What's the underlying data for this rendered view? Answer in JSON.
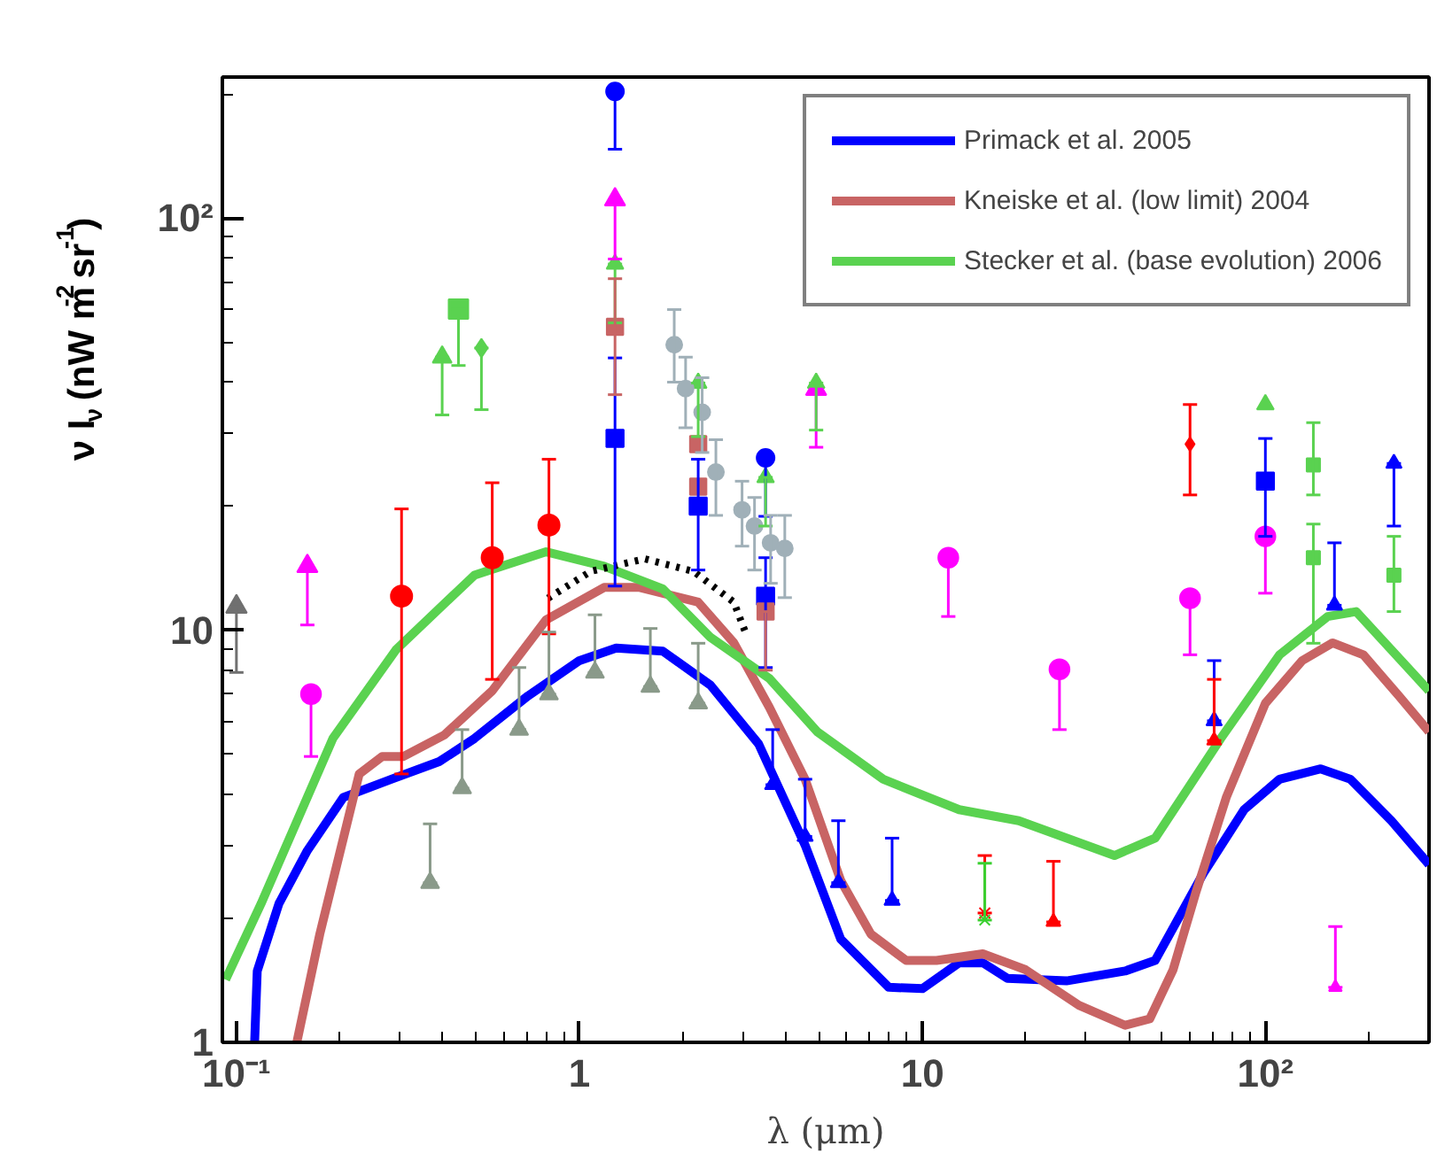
{
  "chart_data": {
    "type": "line",
    "xlabel": "λ (μm)",
    "ylabel": "ν I$_{ν}$ (nW m$^{-2}$ sr$^{-1}$)",
    "log": "xy",
    "grid": false,
    "legend": "top right",
    "xlim": [
      0.091,
      300
    ],
    "ylim": [
      1,
      220
    ],
    "xticks": [
      {
        "value": 0.1,
        "label": "10⁻¹"
      },
      1,
      10,
      {
        "value": 100,
        "label": "10²"
      }
    ],
    "yticks": [
      1,
      10,
      {
        "value": 100,
        "label": "10²"
      }
    ],
    "series": [
      {
        "name": "Primack et al. 2005",
        "color": "#0000ff",
        "line_style": "solid",
        "x": [
          0.113,
          0.115,
          0.133,
          0.161,
          0.205,
          0.283,
          0.39,
          0.494,
          0.708,
          1.0,
          1.28,
          1.75,
          2.41,
          3.33,
          4.55,
          5.78,
          7.98,
          10,
          12.8,
          15.0,
          17.7,
          26.3,
          39,
          47.7,
          65.9,
          86.7,
          110,
          145,
          177,
          233,
          300
        ],
        "values": [
          1.0,
          1.49,
          2.17,
          2.92,
          3.93,
          4.35,
          4.8,
          5.46,
          6.93,
          8.44,
          9.05,
          8.9,
          7.36,
          5.3,
          3.01,
          1.78,
          1.36,
          1.35,
          1.56,
          1.56,
          1.43,
          1.41,
          1.49,
          1.58,
          2.57,
          3.67,
          4.35,
          4.61,
          4.35,
          3.45,
          2.7
        ]
      },
      {
        "name": "Kneiske et al. (low limit) 2004",
        "color": "#c86464",
        "line_style": "solid",
        "x": [
          0.15,
          0.175,
          0.228,
          0.266,
          0.307,
          0.404,
          0.557,
          0.8,
          1.18,
          1.5,
          2.22,
          2.82,
          3.58,
          4.55,
          5.78,
          7.08,
          8.97,
          11.0,
          15.0,
          20.0,
          28.6,
          39,
          46,
          53.8,
          62.8,
          76.9,
          100,
          128,
          157,
          193,
          245,
          300
        ],
        "values": [
          1.0,
          1.83,
          4.48,
          4.94,
          4.94,
          5.57,
          7.13,
          10.6,
          12.7,
          12.7,
          11.7,
          9.32,
          6.5,
          4.35,
          2.47,
          1.83,
          1.58,
          1.58,
          1.64,
          1.5,
          1.23,
          1.1,
          1.14,
          1.5,
          2.32,
          3.93,
          6.65,
          8.44,
          9.32,
          8.72,
          6.93,
          5.67
        ]
      },
      {
        "name": "Stecker et al. (base evolution) 2006",
        "color": "#5ad250",
        "line_style": "solid",
        "x": [
          0.093,
          0.118,
          0.191,
          0.292,
          0.494,
          0.8,
          1.18,
          1.75,
          2.41,
          3.58,
          4.94,
          7.69,
          12.8,
          19.1,
          36.3,
          47.7,
          74.1,
          110,
          152,
          184,
          300
        ],
        "values": [
          1.42,
          2.17,
          5.46,
          8.97,
          13.6,
          15.5,
          14.3,
          12.6,
          9.61,
          7.64,
          5.67,
          4.35,
          3.67,
          3.45,
          2.84,
          3.13,
          5.46,
          8.72,
          10.8,
          11.1,
          7.13
        ]
      },
      {
        "color": "#000000",
        "line_style": "dotted",
        "x": [
          0.81,
          1.08,
          1.55,
          2.15,
          2.82,
          3.06
        ],
        "values": [
          11.96,
          13.9,
          14.9,
          13.9,
          11.7,
          9.8
        ]
      },
      {
        "type": "scatter",
        "color": "#ff0000",
        "marker": "circle",
        "x": [
          0.303,
          0.557,
          0.815
        ],
        "values": [
          12.1,
          15.0,
          18.0
        ],
        "errors": [
          [
            4.48,
            19.7
          ],
          [
            7.6,
            22.8
          ],
          [
            9.8,
            26.0
          ]
        ]
      },
      {
        "type": "scatter",
        "color": "#707070",
        "marker": "triangle",
        "x": [
          0.1
        ],
        "values": [
          11.4
        ],
        "errors": [
          [
            7.9,
            11.4
          ]
        ]
      },
      {
        "type": "scatter",
        "color": "#ff00ff",
        "marker": "triangle",
        "x": [
          0.161,
          1.27,
          4.9
        ],
        "values": [
          14.3,
          111,
          38.5
        ],
        "errors": [
          [
            10.3,
            14.3
          ],
          [
            79.6,
            111
          ],
          [
            27.8,
            38.5
          ]
        ]
      },
      {
        "type": "scatter",
        "color": "#ff00ff",
        "marker": "circle",
        "x": [
          0.165,
          11.9,
          25.1,
          60.3,
          100
        ],
        "values": [
          7.0,
          15.0,
          8.04,
          11.96,
          16.9
        ],
        "errors": [
          [
            4.94,
            7.0
          ],
          [
            10.8,
            15.0
          ],
          [
            5.74,
            8.04
          ],
          [
            8.72,
            11.96
          ],
          [
            12.3,
            16.9
          ]
        ]
      },
      {
        "type": "scatter",
        "color": "#5ad250",
        "marker": "square",
        "x": [
          0.444
        ],
        "values": [
          60.2
        ],
        "errors": [
          [
            43.9,
            60.2
          ]
        ]
      },
      {
        "type": "scatter",
        "color": "#5ad250",
        "marker": "triangle",
        "x": [
          0.398
        ],
        "values": [
          46.0
        ],
        "errors": [
          [
            33.3,
            46.0
          ]
        ]
      },
      {
        "type": "scatter",
        "color": "#5ad250",
        "marker": "diamond",
        "x": [
          0.518
        ],
        "values": [
          48.4
        ],
        "errors": [
          [
            34.3,
            48.4
          ]
        ]
      },
      {
        "type": "scatter",
        "color": "#8a9a8a",
        "marker": "triangle",
        "x": [
          0.367,
          0.455,
          0.667,
          0.815,
          1.11,
          1.61,
          2.22
        ],
        "values": [
          2.44,
          4.14,
          5.74,
          7.0,
          7.9,
          7.3,
          6.65
        ],
        "errors": [
          [
            2.44,
            3.39
          ],
          [
            4.14,
            5.74
          ],
          [
            5.74,
            8.12
          ],
          [
            7.0,
            9.9
          ],
          [
            7.9,
            10.9
          ],
          [
            7.3,
            10.1
          ],
          [
            6.65,
            9.3
          ]
        ]
      },
      {
        "type": "scatter",
        "color": "#0000ff",
        "marker": "circle",
        "x": [
          1.27,
          3.49
        ],
        "values": [
          203,
          26.2
        ],
        "errors": [
          [
            147,
            203
          ],
          [
            18.9,
            26.2
          ]
        ]
      },
      {
        "type": "scatter",
        "color": "#0000ff",
        "marker": "square",
        "x": [
          1.27,
          2.22,
          3.49,
          100
        ],
        "values": [
          29.2,
          20.0,
          12.1,
          23.0
        ],
        "errors": [
          [
            12.8,
            45.8
          ],
          [
            14.0,
            26.0
          ],
          [
            8.12,
            15.0
          ],
          [
            16.9,
            29.2
          ]
        ]
      },
      {
        "type": "scatter",
        "color": "#5ad250",
        "marker": "triangle",
        "x": [
          1.27,
          2.22,
          3.49,
          4.9,
          100
        ],
        "values": [
          77.4,
          39.8,
          23.5,
          39.8,
          35.3
        ],
        "errors": [
          [
            55.7,
            77.4
          ],
          [
            29.5,
            39.8
          ],
          [
            17.9,
            23.5
          ],
          [
            30.6,
            39.8
          ],
          null
        ]
      },
      {
        "type": "scatter",
        "color": "#c86464",
        "marker": "square",
        "x": [
          1.27,
          2.22,
          2.22,
          3.49
        ],
        "values": [
          54.5,
          28.3,
          22.3,
          11.1
        ],
        "errors": [
          [
            37.3,
            71.3
          ],
          null,
          null,
          [
            8.0,
            11.1
          ]
        ]
      },
      {
        "type": "scatter",
        "color": "#a0b0b8",
        "marker": "circle",
        "x": [
          1.89,
          2.04,
          2.28,
          2.5,
          2.98,
          3.24,
          3.61,
          3.97
        ],
        "values": [
          49.3,
          38.6,
          33.8,
          24.2,
          19.6,
          17.9,
          16.3,
          15.8
        ],
        "errors": [
          [
            40,
            60
          ],
          [
            31,
            46
          ],
          [
            27,
            41
          ],
          [
            19,
            29
          ],
          [
            16,
            23
          ],
          [
            14,
            21
          ],
          [
            13,
            19
          ],
          [
            12,
            19
          ]
        ]
      },
      {
        "type": "scatter",
        "color": "#0000ff",
        "marker": "triangle",
        "x": [
          3.66,
          4.55,
          5.69,
          8.16,
          70.9,
          159,
          237
        ],
        "values": [
          4.22,
          3.16,
          2.44,
          2.21,
          6.03,
          11.5,
          25.4
        ],
        "errors": [
          [
            4.22,
            5.74
          ],
          [
            3.16,
            4.35
          ],
          [
            2.44,
            3.45
          ],
          [
            2.21,
            3.13
          ],
          [
            6.03,
            8.44
          ],
          [
            11.5,
            16.3
          ],
          [
            17.9,
            25.4
          ]
        ]
      },
      {
        "type": "scatter",
        "color": "#ff0000",
        "marker": "cross",
        "x": [
          15.2
        ],
        "values": [
          2.06
        ],
        "errors": [
          [
            2.06,
            2.84
          ]
        ]
      },
      {
        "type": "scatter",
        "color": "#3ad030",
        "marker": "cross",
        "x": [
          15.2
        ],
        "values": [
          1.98
        ],
        "errors": [
          [
            1.98,
            2.72
          ]
        ]
      },
      {
        "type": "scatter",
        "color": "#ff0000",
        "marker": "triangle",
        "x": [
          24.1,
          70.9
        ],
        "values": [
          1.96,
          5.4
        ],
        "errors": [
          [
            1.96,
            2.75
          ],
          [
            5.4,
            7.6
          ]
        ]
      },
      {
        "type": "scatter",
        "color": "#ff0000",
        "marker": "diamond",
        "x": [
          60.3
        ],
        "values": [
          28.3
        ],
        "errors": [
          [
            21.3,
            35.3
          ]
        ]
      },
      {
        "type": "scatter",
        "color": "#5ad250",
        "marker": "square",
        "x": [
          138,
          138,
          237
        ],
        "values": [
          25.2,
          15.0,
          13.6
        ],
        "errors": [
          [
            21.3,
            31.9
          ],
          [
            9.3,
            18.1
          ],
          [
            11.1,
            16.9
          ]
        ]
      },
      {
        "type": "scatter",
        "color": "#ff00ff",
        "marker": "triangle",
        "x": [
          160
        ],
        "values": [
          1.36
        ],
        "errors": [
          [
            1.36,
            1.91
          ]
        ]
      }
    ]
  }
}
